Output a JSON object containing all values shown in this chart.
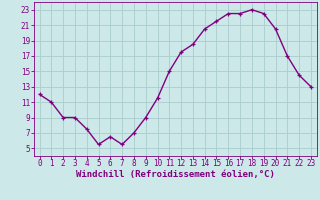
{
  "x": [
    0,
    1,
    2,
    3,
    4,
    5,
    6,
    7,
    8,
    9,
    10,
    11,
    12,
    13,
    14,
    15,
    16,
    17,
    18,
    19,
    20,
    21,
    22,
    23
  ],
  "y": [
    12,
    11,
    9,
    9,
    7.5,
    5.5,
    6.5,
    5.5,
    7,
    9,
    11.5,
    15,
    17.5,
    18.5,
    20.5,
    21.5,
    22.5,
    22.5,
    23,
    22.5,
    20.5,
    17,
    14.5,
    13
  ],
  "line_color": "#800080",
  "marker": "+",
  "bg_color": "#cce8e8",
  "grid_color": "#aacccc",
  "xlabel": "Windchill (Refroidissement éolien,°C)",
  "xlabel_fontsize": 6.5,
  "tick_color": "#800080",
  "tick_fontsize": 5.5,
  "xlim": [
    -0.5,
    23.5
  ],
  "ylim": [
    4,
    24
  ],
  "yticks": [
    5,
    7,
    9,
    11,
    13,
    15,
    17,
    19,
    21,
    23
  ],
  "xticks": [
    0,
    1,
    2,
    3,
    4,
    5,
    6,
    7,
    8,
    9,
    10,
    11,
    12,
    13,
    14,
    15,
    16,
    17,
    18,
    19,
    20,
    21,
    22,
    23
  ],
  "linewidth": 1.0,
  "markersize": 3
}
